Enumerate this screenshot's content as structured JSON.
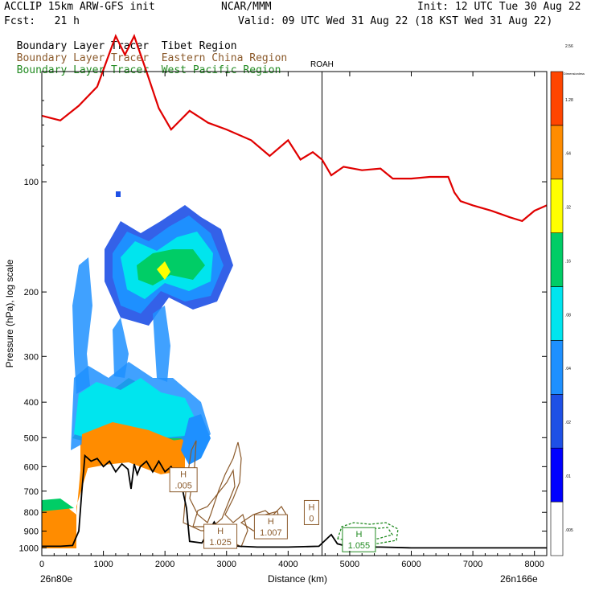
{
  "header": {
    "line1_left": "ACCLIP 15km ARW-GFS init",
    "line1_center": "NCAR/MMM",
    "line1_right": "Init: 12 UTC Tue 30 Aug 22",
    "line2_left": "Fcst:   21 h",
    "line2_right": "Valid: 09 UTC Wed 31 Aug 22 (18 KST Wed 31 Aug 22)",
    "tracers": [
      {
        "name": "Boundary Layer Tracer",
        "region": "Tibet Region",
        "color": "#000000"
      },
      {
        "name": "Boundary Layer Tracer",
        "region": "Eastern China Region",
        "color": "#8b5a2b"
      },
      {
        "name": "Boundary Layer Tracer",
        "region": "West Pacific Region",
        "color": "#228b22"
      }
    ]
  },
  "chart_data": {
    "type": "cross-section",
    "title": "ACCLIP 15km ARW-GFS init",
    "xlabel": "Distance (km)",
    "ylabel": "Pressure (hPa), log scale",
    "xlim": [
      0,
      8200
    ],
    "ylim": [
      1050,
      50
    ],
    "xticks": [
      0,
      1000,
      2000,
      3000,
      4000,
      5000,
      6000,
      7000,
      8000
    ],
    "yticks": [
      100,
      200,
      300,
      400,
      500,
      600,
      700,
      800,
      900,
      1000
    ],
    "endpoint_left": "26n80e",
    "endpoint_right": "26n166e",
    "marker_label": "ROAH",
    "marker_x": 4550,
    "colorbar": {
      "title": "Dimensionless",
      "labels": [
        ".005",
        ".01",
        ".02",
        ".04",
        ".08",
        ".16",
        ".32",
        ".64",
        "1.28",
        "2.56"
      ],
      "colors": [
        "#ffffff",
        "#0000ff",
        "#1e50e6",
        "#1e90ff",
        "#00e5ee",
        "#00cd66",
        "#ffff00",
        "#ff8c00",
        "#ff4500"
      ]
    },
    "tropopause": {
      "color": "#e00000",
      "x": [
        0,
        300,
        600,
        900,
        1200,
        1350,
        1500,
        1700,
        1900,
        2100,
        2400,
        2700,
        3000,
        3400,
        3700,
        4000,
        4200,
        4400,
        4550,
        4700,
        4900,
        5200,
        5500,
        5700,
        6000,
        6300,
        6600,
        6700,
        6800,
        7000,
        7300,
        7600,
        7800,
        8000,
        8200
      ],
      "p": [
        66,
        68,
        62,
        55,
        40,
        45,
        40,
        50,
        63,
        72,
        64,
        69,
        72,
        77,
        85,
        77,
        87,
        83,
        87,
        96,
        91,
        93,
        92,
        98,
        98,
        97,
        97,
        107,
        113,
        116,
        120,
        125,
        128,
        120,
        116
      ]
    },
    "terrain": {
      "color": "#000000",
      "x": [
        0,
        300,
        500,
        600,
        650,
        700,
        800,
        900,
        1000,
        1100,
        1200,
        1300,
        1400,
        1450,
        1500,
        1550,
        1600,
        1700,
        1800,
        1900,
        2000,
        2100,
        2200,
        2250,
        2350,
        2400,
        2600,
        2800,
        3000,
        3200,
        3500,
        4000,
        4500,
        4700,
        4800,
        5000,
        5500,
        6000,
        7000,
        8000,
        8200
      ],
      "p": [
        990,
        990,
        985,
        900,
        700,
        560,
        580,
        570,
        600,
        580,
        620,
        590,
        610,
        690,
        590,
        630,
        600,
        580,
        620,
        580,
        620,
        600,
        640,
        650,
        780,
        960,
        970,
        850,
        980,
        990,
        995,
        995,
        990,
        920,
        975,
        995,
        995,
        1000,
        1000,
        1000,
        1000
      ]
    },
    "max_labels": [
      {
        "text": "H",
        "value": ".005",
        "x": 2300,
        "p": 655,
        "color": "#8b5a2b"
      },
      {
        "text": "H",
        "value": "1.025",
        "x": 2900,
        "p": 935,
        "color": "#8b5a2b"
      },
      {
        "text": "H",
        "value": "1.007",
        "x": 3720,
        "p": 880,
        "color": "#8b5a2b"
      },
      {
        "text": "H",
        "value": "0",
        "x": 4380,
        "p": 805,
        "color": "#8b5a2b"
      },
      {
        "text": "H",
        "value": "1.055",
        "x": 5150,
        "p": 955,
        "color": "#228b22"
      }
    ]
  }
}
